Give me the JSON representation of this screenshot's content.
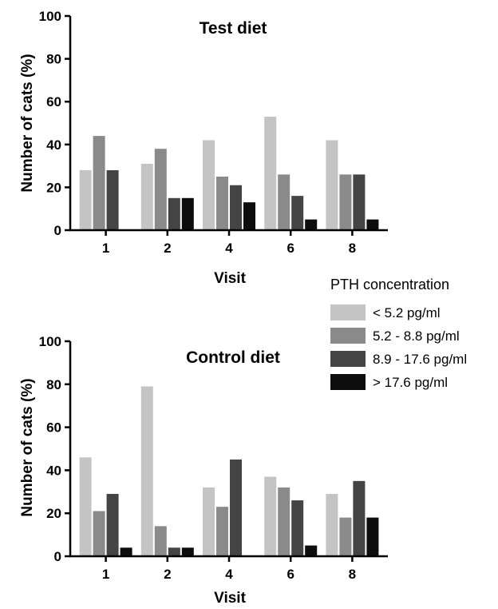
{
  "chart_data": [
    {
      "type": "bar",
      "title": "Test diet",
      "xlabel": "Visit",
      "ylabel": "Number of cats (%)",
      "ylim": [
        0,
        100
      ],
      "yticks": [
        "0",
        "20",
        "40",
        "60",
        "80",
        "100"
      ],
      "grid": false,
      "categories": [
        "1",
        "2",
        "4",
        "6",
        "8"
      ],
      "series": [
        {
          "name": "< 5.2 pg/ml",
          "color": "#c4c4c4",
          "values": [
            28,
            31,
            42,
            53,
            42
          ]
        },
        {
          "name": "5.2 - 8.8 pg/ml",
          "color": "#8a8a8a",
          "values": [
            44,
            38,
            25,
            26,
            26
          ]
        },
        {
          "name": "8.9 - 17.6 pg/ml",
          "color": "#444444",
          "values": [
            28,
            15,
            21,
            16,
            26
          ]
        },
        {
          "name": "> 17.6 pg/ml",
          "color": "#0d0d0d",
          "values": [
            0,
            15,
            13,
            5,
            5
          ]
        }
      ]
    },
    {
      "type": "bar",
      "title": "Control diet",
      "xlabel": "Visit",
      "ylabel": "Number of cats (%)",
      "ylim": [
        0,
        100
      ],
      "yticks": [
        "0",
        "20",
        "40",
        "60",
        "80",
        "100"
      ],
      "grid": false,
      "categories": [
        "1",
        "2",
        "4",
        "6",
        "8"
      ],
      "series": [
        {
          "name": "< 5.2 pg/ml",
          "color": "#c4c4c4",
          "values": [
            46,
            79,
            32,
            37,
            29
          ]
        },
        {
          "name": "5.2 - 8.8 pg/ml",
          "color": "#8a8a8a",
          "values": [
            21,
            14,
            23,
            32,
            18
          ]
        },
        {
          "name": "8.9 - 17.6 pg/ml",
          "color": "#444444",
          "values": [
            29,
            4,
            45,
            26,
            35
          ]
        },
        {
          "name": "> 17.6 pg/ml",
          "color": "#0d0d0d",
          "values": [
            4,
            4,
            0,
            5,
            18
          ]
        }
      ]
    }
  ],
  "legend": {
    "title": "PTH concentration",
    "placement": "right, between charts",
    "items": [
      {
        "label": "< 5.2 pg/ml",
        "color": "#c4c4c4"
      },
      {
        "label": "5.2 - 8.8 pg/ml",
        "color": "#8a8a8a"
      },
      {
        "label": "8.9 - 17.6 pg/ml",
        "color": "#444444"
      },
      {
        "label": "> 17.6 pg/ml",
        "color": "#0d0d0d"
      }
    ]
  }
}
